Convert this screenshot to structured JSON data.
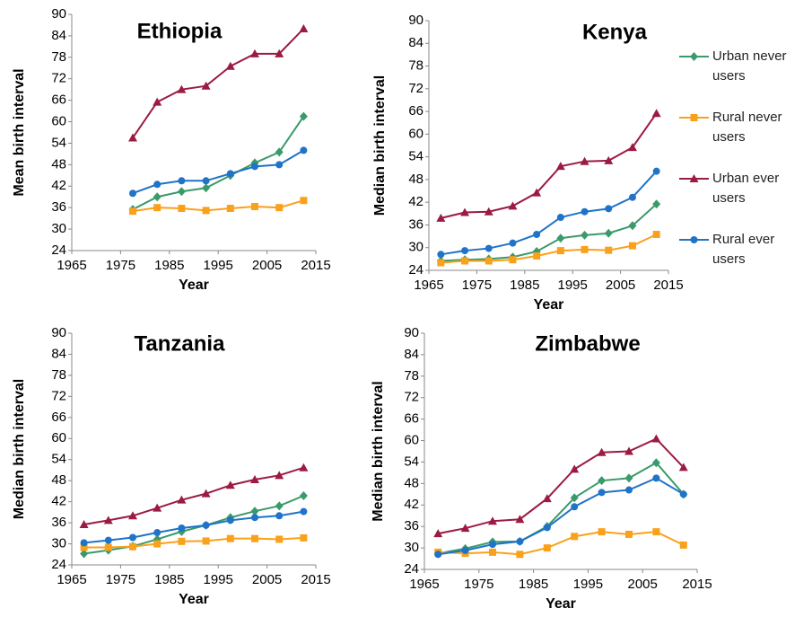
{
  "chart_data": [
    {
      "type": "line",
      "title": "Ethiopia",
      "y_label": "Mean birth interval",
      "x_label": "Year",
      "x": [
        1977.5,
        1982.5,
        1987.5,
        1992.5,
        1997.5,
        2002.5,
        2007.5,
        2012.5
      ],
      "xlim": [
        1965,
        2015
      ],
      "xticks": [
        1965,
        1975,
        1985,
        1995,
        2005,
        2015
      ],
      "ylim": [
        24,
        90
      ],
      "yticks": [
        24,
        30,
        36,
        42,
        48,
        54,
        60,
        66,
        72,
        78,
        84,
        90
      ],
      "series": [
        {
          "color": "#3a9a6a",
          "marker": "diamond",
          "values": [
            35.5,
            39,
            40.5,
            41.5,
            45,
            48.5,
            51.5,
            61.5
          ]
        },
        {
          "color": "#f9a11b",
          "marker": "square",
          "values": [
            35,
            36,
            35.8,
            35.2,
            35.8,
            36.3,
            36,
            38
          ]
        },
        {
          "color": "#9b1b42",
          "marker": "triangle",
          "values": [
            55.5,
            65.5,
            69,
            70,
            75.5,
            79,
            79,
            86
          ]
        },
        {
          "color": "#1f73c8",
          "marker": "circle",
          "values": [
            40,
            42.5,
            43.5,
            43.5,
            45.5,
            47.5,
            48,
            52
          ]
        }
      ]
    },
    {
      "type": "line",
      "title": "Kenya",
      "y_label": "Median birth interval",
      "x_label": "Year",
      "x": [
        1967.5,
        1972.5,
        1977.5,
        1982.5,
        1987.5,
        1992.5,
        1997.5,
        2002.5,
        2007.5,
        2012.5
      ],
      "xlim": [
        1965,
        2015
      ],
      "xticks": [
        1965,
        1975,
        1985,
        1995,
        2005,
        2015
      ],
      "ylim": [
        24,
        90
      ],
      "yticks": [
        24,
        30,
        36,
        42,
        48,
        54,
        60,
        66,
        72,
        78,
        84,
        90
      ],
      "series": [
        {
          "name": "Urban never users",
          "color": "#3a9a6a",
          "marker": "diamond",
          "values": [
            26.5,
            26.8,
            27,
            27.5,
            29,
            32.5,
            33.3,
            33.8,
            35.8,
            41.5
          ]
        },
        {
          "name": "Rural never users",
          "color": "#f9a11b",
          "marker": "square",
          "values": [
            26,
            26.5,
            26.5,
            26.8,
            27.8,
            29.2,
            29.5,
            29.3,
            30.5,
            33.5
          ]
        },
        {
          "name": "Urban ever users",
          "color": "#9b1b42",
          "marker": "triangle",
          "values": [
            37.8,
            39.3,
            39.5,
            41,
            44.5,
            51.5,
            52.8,
            53,
            56.5,
            65.5
          ]
        },
        {
          "name": "Rural ever users",
          "color": "#1f73c8",
          "marker": "circle",
          "values": [
            28.2,
            29.2,
            29.8,
            31.2,
            33.5,
            38,
            39.5,
            40.3,
            43.3,
            50.2
          ]
        }
      ]
    },
    {
      "type": "line",
      "title": "Tanzania",
      "y_label": "Median birth interval",
      "x_label": "Year",
      "x": [
        1967.5,
        1972.5,
        1977.5,
        1982.5,
        1987.5,
        1992.5,
        1997.5,
        2002.5,
        2007.5,
        2012.5
      ],
      "xlim": [
        1965,
        2015
      ],
      "xticks": [
        1965,
        1975,
        1985,
        1995,
        2005,
        2015
      ],
      "ylim": [
        24,
        90
      ],
      "yticks": [
        24,
        30,
        36,
        42,
        48,
        54,
        60,
        66,
        72,
        78,
        84,
        90
      ],
      "series": [
        {
          "color": "#3a9a6a",
          "marker": "diamond",
          "values": [
            27.2,
            28.2,
            29.3,
            31.3,
            33.5,
            35.3,
            37.5,
            39.3,
            40.8,
            43.7
          ]
        },
        {
          "color": "#f9a11b",
          "marker": "square",
          "values": [
            29,
            29,
            29.2,
            30,
            30.7,
            30.8,
            31.5,
            31.5,
            31.3,
            31.7
          ]
        },
        {
          "color": "#9b1b42",
          "marker": "triangle",
          "values": [
            35.5,
            36.7,
            38,
            40.2,
            42.5,
            44.3,
            46.7,
            48.3,
            49.5,
            51.7
          ]
        },
        {
          "color": "#1f73c8",
          "marker": "circle",
          "values": [
            30.3,
            31,
            31.8,
            33.2,
            34.5,
            35.3,
            36.7,
            37.5,
            38,
            39.2
          ]
        }
      ]
    },
    {
      "type": "line",
      "title": "Zimbabwe",
      "y_label": "Median birth interval",
      "x_label": "Year",
      "x": [
        1967.5,
        1972.5,
        1977.5,
        1982.5,
        1987.5,
        1992.5,
        1997.5,
        2002.5,
        2007.5,
        2012.5
      ],
      "xlim": [
        1965,
        2015
      ],
      "xticks": [
        1965,
        1975,
        1985,
        1995,
        2005,
        2015
      ],
      "ylim": [
        24,
        90
      ],
      "yticks": [
        24,
        30,
        36,
        42,
        48,
        54,
        60,
        66,
        72,
        78,
        84,
        90
      ],
      "series": [
        {
          "color": "#3a9a6a",
          "marker": "diamond",
          "values": [
            28.5,
            29.8,
            31.7,
            31.8,
            36,
            44,
            48.8,
            49.5,
            53.8,
            45
          ]
        },
        {
          "color": "#f9a11b",
          "marker": "square",
          "values": [
            28.8,
            28.5,
            28.8,
            28.2,
            30,
            33.2,
            34.5,
            33.8,
            34.5,
            30.8
          ]
        },
        {
          "color": "#9b1b42",
          "marker": "triangle",
          "values": [
            34,
            35.5,
            37.5,
            38,
            43.8,
            52,
            56.7,
            57,
            60.5,
            52.5
          ]
        },
        {
          "color": "#1f73c8",
          "marker": "circle",
          "values": [
            28.2,
            29.3,
            31,
            31.8,
            35.7,
            41.5,
            45.5,
            46.2,
            49.5,
            45
          ]
        }
      ]
    }
  ]
}
